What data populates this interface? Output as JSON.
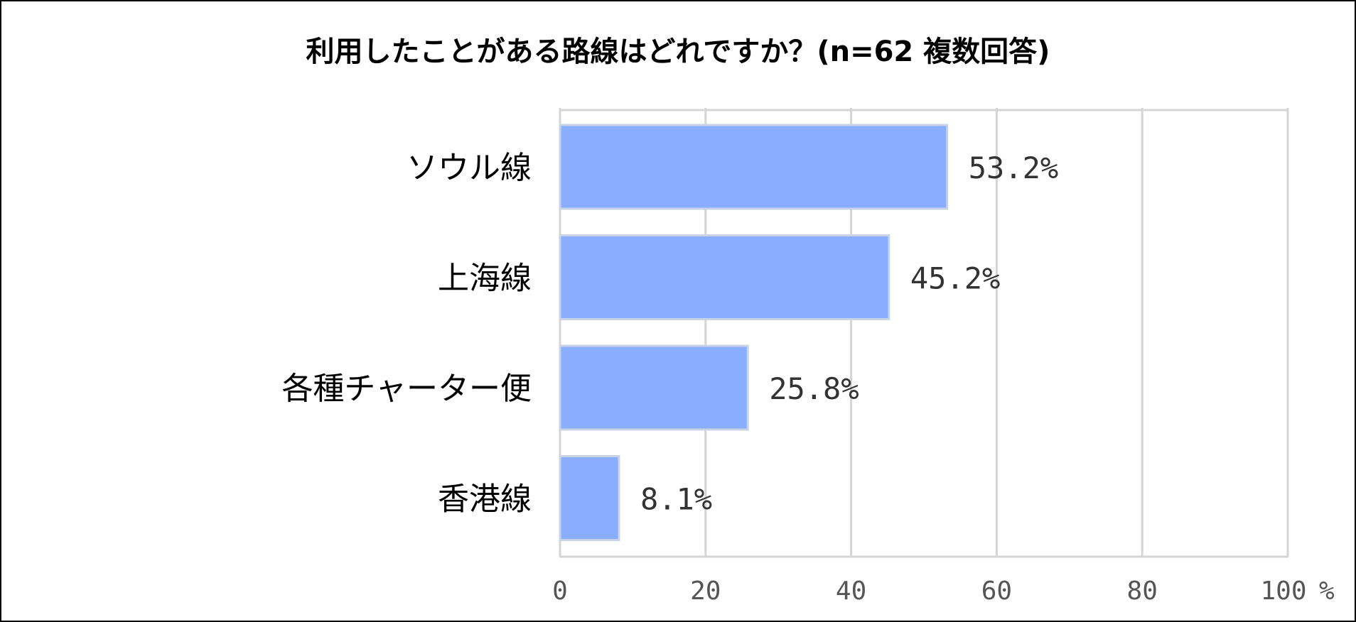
{
  "chart_data": {
    "type": "bar",
    "orientation": "horizontal",
    "title": "利用したことがある路線はどれですか？(n=62 複数回答)",
    "categories": [
      "ソウル線",
      "上海線",
      "各種チャーター便",
      "香港線"
    ],
    "values": [
      53.2,
      45.2,
      25.8,
      8.1
    ],
    "value_labels": [
      "53.2%",
      "45.2%",
      "25.8%",
      "8.1%"
    ],
    "xlim": [
      0,
      100
    ],
    "x_ticks": [
      "0",
      "20",
      "40",
      "60",
      "80",
      "100"
    ],
    "x_unit": "%",
    "grid": true,
    "legend": "none",
    "colors": {
      "bar": "#8AAEFF",
      "bar_border": "#C9D3E6",
      "grid": "#D5D5D5"
    }
  }
}
